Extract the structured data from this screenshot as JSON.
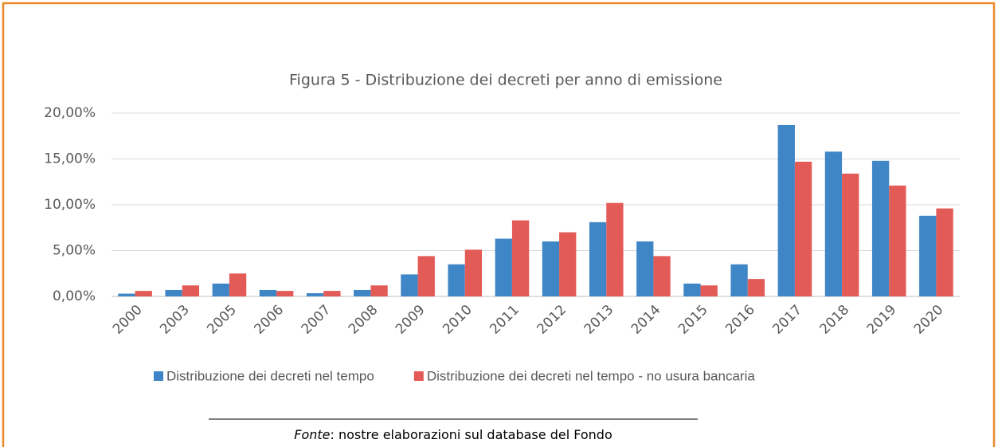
{
  "chart_data": {
    "type": "bar",
    "title": "Figura 5 - Distribuzione dei decreti per anno di emissione",
    "categories": [
      "2000",
      "2003",
      "2005",
      "2006",
      "2007",
      "2008",
      "2009",
      "2010",
      "2011",
      "2012",
      "2013",
      "2014",
      "2015",
      "2016",
      "2017",
      "2018",
      "2019",
      "2020"
    ],
    "series": [
      {
        "name": "Distribuzione dei decreti nel tempo",
        "color": "#3f86c6",
        "values": [
          0.3,
          0.7,
          1.4,
          0.7,
          0.35,
          0.7,
          2.4,
          3.5,
          6.3,
          6.0,
          8.1,
          6.0,
          1.4,
          3.5,
          18.7,
          15.8,
          14.8,
          8.8
        ]
      },
      {
        "name": "Distribuzione dei decreti nel tempo - no usura bancaria",
        "color": "#e35b57",
        "values": [
          0.6,
          1.2,
          2.5,
          0.6,
          0.6,
          1.2,
          4.4,
          5.1,
          8.3,
          7.0,
          10.2,
          4.4,
          1.2,
          1.9,
          14.7,
          13.4,
          12.1,
          9.6
        ]
      }
    ],
    "ylim": [
      0,
      20
    ],
    "yticks": [
      {
        "value": 0,
        "label": "0,00%"
      },
      {
        "value": 5,
        "label": "5,00%"
      },
      {
        "value": 10,
        "label": "10,00%"
      },
      {
        "value": 15,
        "label": "15,00%"
      },
      {
        "value": 20,
        "label": "20,00%"
      }
    ],
    "grid": true,
    "legend": "bottom",
    "source_label": "Fonte",
    "source_text": ": nostre elaborazioni sul database del Fondo"
  }
}
